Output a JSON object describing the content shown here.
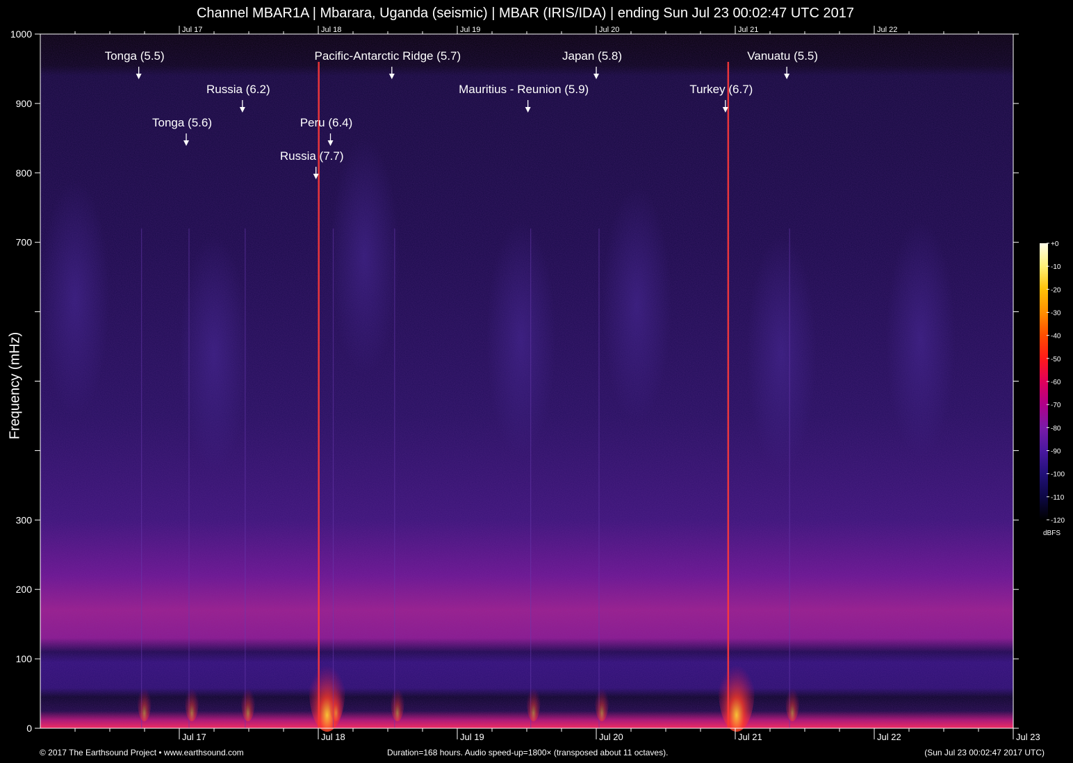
{
  "header": {
    "title": "Channel MBAR1A | Mbarara, Uganda (seismic) | MBAR (IRIS/IDA) | ending Sun Jul 23 00:02:47 UTC 2017"
  },
  "footer": {
    "copyright": "© 2017 The Earthsound Project • www.earthsound.com",
    "duration": "Duration=168 hours. Audio speed-up=1800× (transposed about 11 octaves).",
    "end_stamp": "(Sun Jul 23 00:02:47 2017 UTC)"
  },
  "chart_data": {
    "type": "heatmap",
    "title": "Channel MBAR1A | Mbarara, Uganda (seismic) | MBAR (IRIS/IDA) | ending Sun Jul 23 00:02:47 UTC 2017",
    "xlabel": "",
    "ylabel": "Frequency (mHz)",
    "x_unit": "hours",
    "xlim": [
      0,
      168
    ],
    "ylim": [
      0,
      1000
    ],
    "y_ticks": [
      {
        "value": 0,
        "label": "0"
      },
      {
        "value": 100,
        "label": "100"
      },
      {
        "value": 200,
        "label": "200"
      },
      {
        "value": 300,
        "label": "300"
      },
      {
        "value": 400,
        "label": ""
      },
      {
        "value": 500,
        "label": ""
      },
      {
        "value": 600,
        "label": ""
      },
      {
        "value": 700,
        "label": "700"
      },
      {
        "value": 800,
        "label": "800"
      },
      {
        "value": 900,
        "label": "900"
      },
      {
        "value": 1000,
        "label": "1000"
      }
    ],
    "x_ticks": [
      {
        "hour": 24,
        "label": "Jul 17"
      },
      {
        "hour": 48,
        "label": "Jul 18"
      },
      {
        "hour": 72,
        "label": "Jul 19"
      },
      {
        "hour": 96,
        "label": "Jul 20"
      },
      {
        "hour": 120,
        "label": "Jul 21"
      },
      {
        "hour": 144,
        "label": "Jul 22"
      },
      {
        "hour": 168,
        "label": "Jul 23"
      }
    ],
    "minor_tick_interval_hours": 6,
    "events": [
      {
        "label": "Tonga (5.5)",
        "hour": 17.0,
        "tier": 0
      },
      {
        "label": "Tonga (5.6)",
        "hour": 25.2,
        "tier": 2
      },
      {
        "label": "Russia (6.2)",
        "hour": 34.9,
        "tier": 1
      },
      {
        "label": "Russia (7.7)",
        "hour": 47.6,
        "tier": 3
      },
      {
        "label": "Peru (6.4)",
        "hour": 50.1,
        "tier": 2
      },
      {
        "label": "Pacific-Antarctic Ridge (5.7)",
        "hour": 60.7,
        "tier": 0
      },
      {
        "label": "Mauritius - Reunion (5.9)",
        "hour": 84.2,
        "tier": 1
      },
      {
        "label": "Japan (5.8)",
        "hour": 96.0,
        "tier": 0
      },
      {
        "label": "Turkey (6.7)",
        "hour": 118.3,
        "tier": 1
      },
      {
        "label": "Vanuatu (5.5)",
        "hour": 128.9,
        "tier": 0
      }
    ],
    "colorbar": {
      "unit": "dBFS",
      "range": [
        -120,
        0
      ],
      "tick_labels": [
        "+0",
        "-10",
        "-20",
        "-30",
        "-40",
        "-50",
        "-60",
        "-70",
        "-80",
        "-90",
        "-100",
        "-110",
        "-120"
      ],
      "colors": [
        "#fffde8",
        "#fff176",
        "#ffc107",
        "#ff8f00",
        "#ff4d00",
        "#ff1a1a",
        "#e0005a",
        "#b0008a",
        "#7a1aa8",
        "#4a18a0",
        "#22107a",
        "#0d0845",
        "#000000"
      ]
    }
  }
}
